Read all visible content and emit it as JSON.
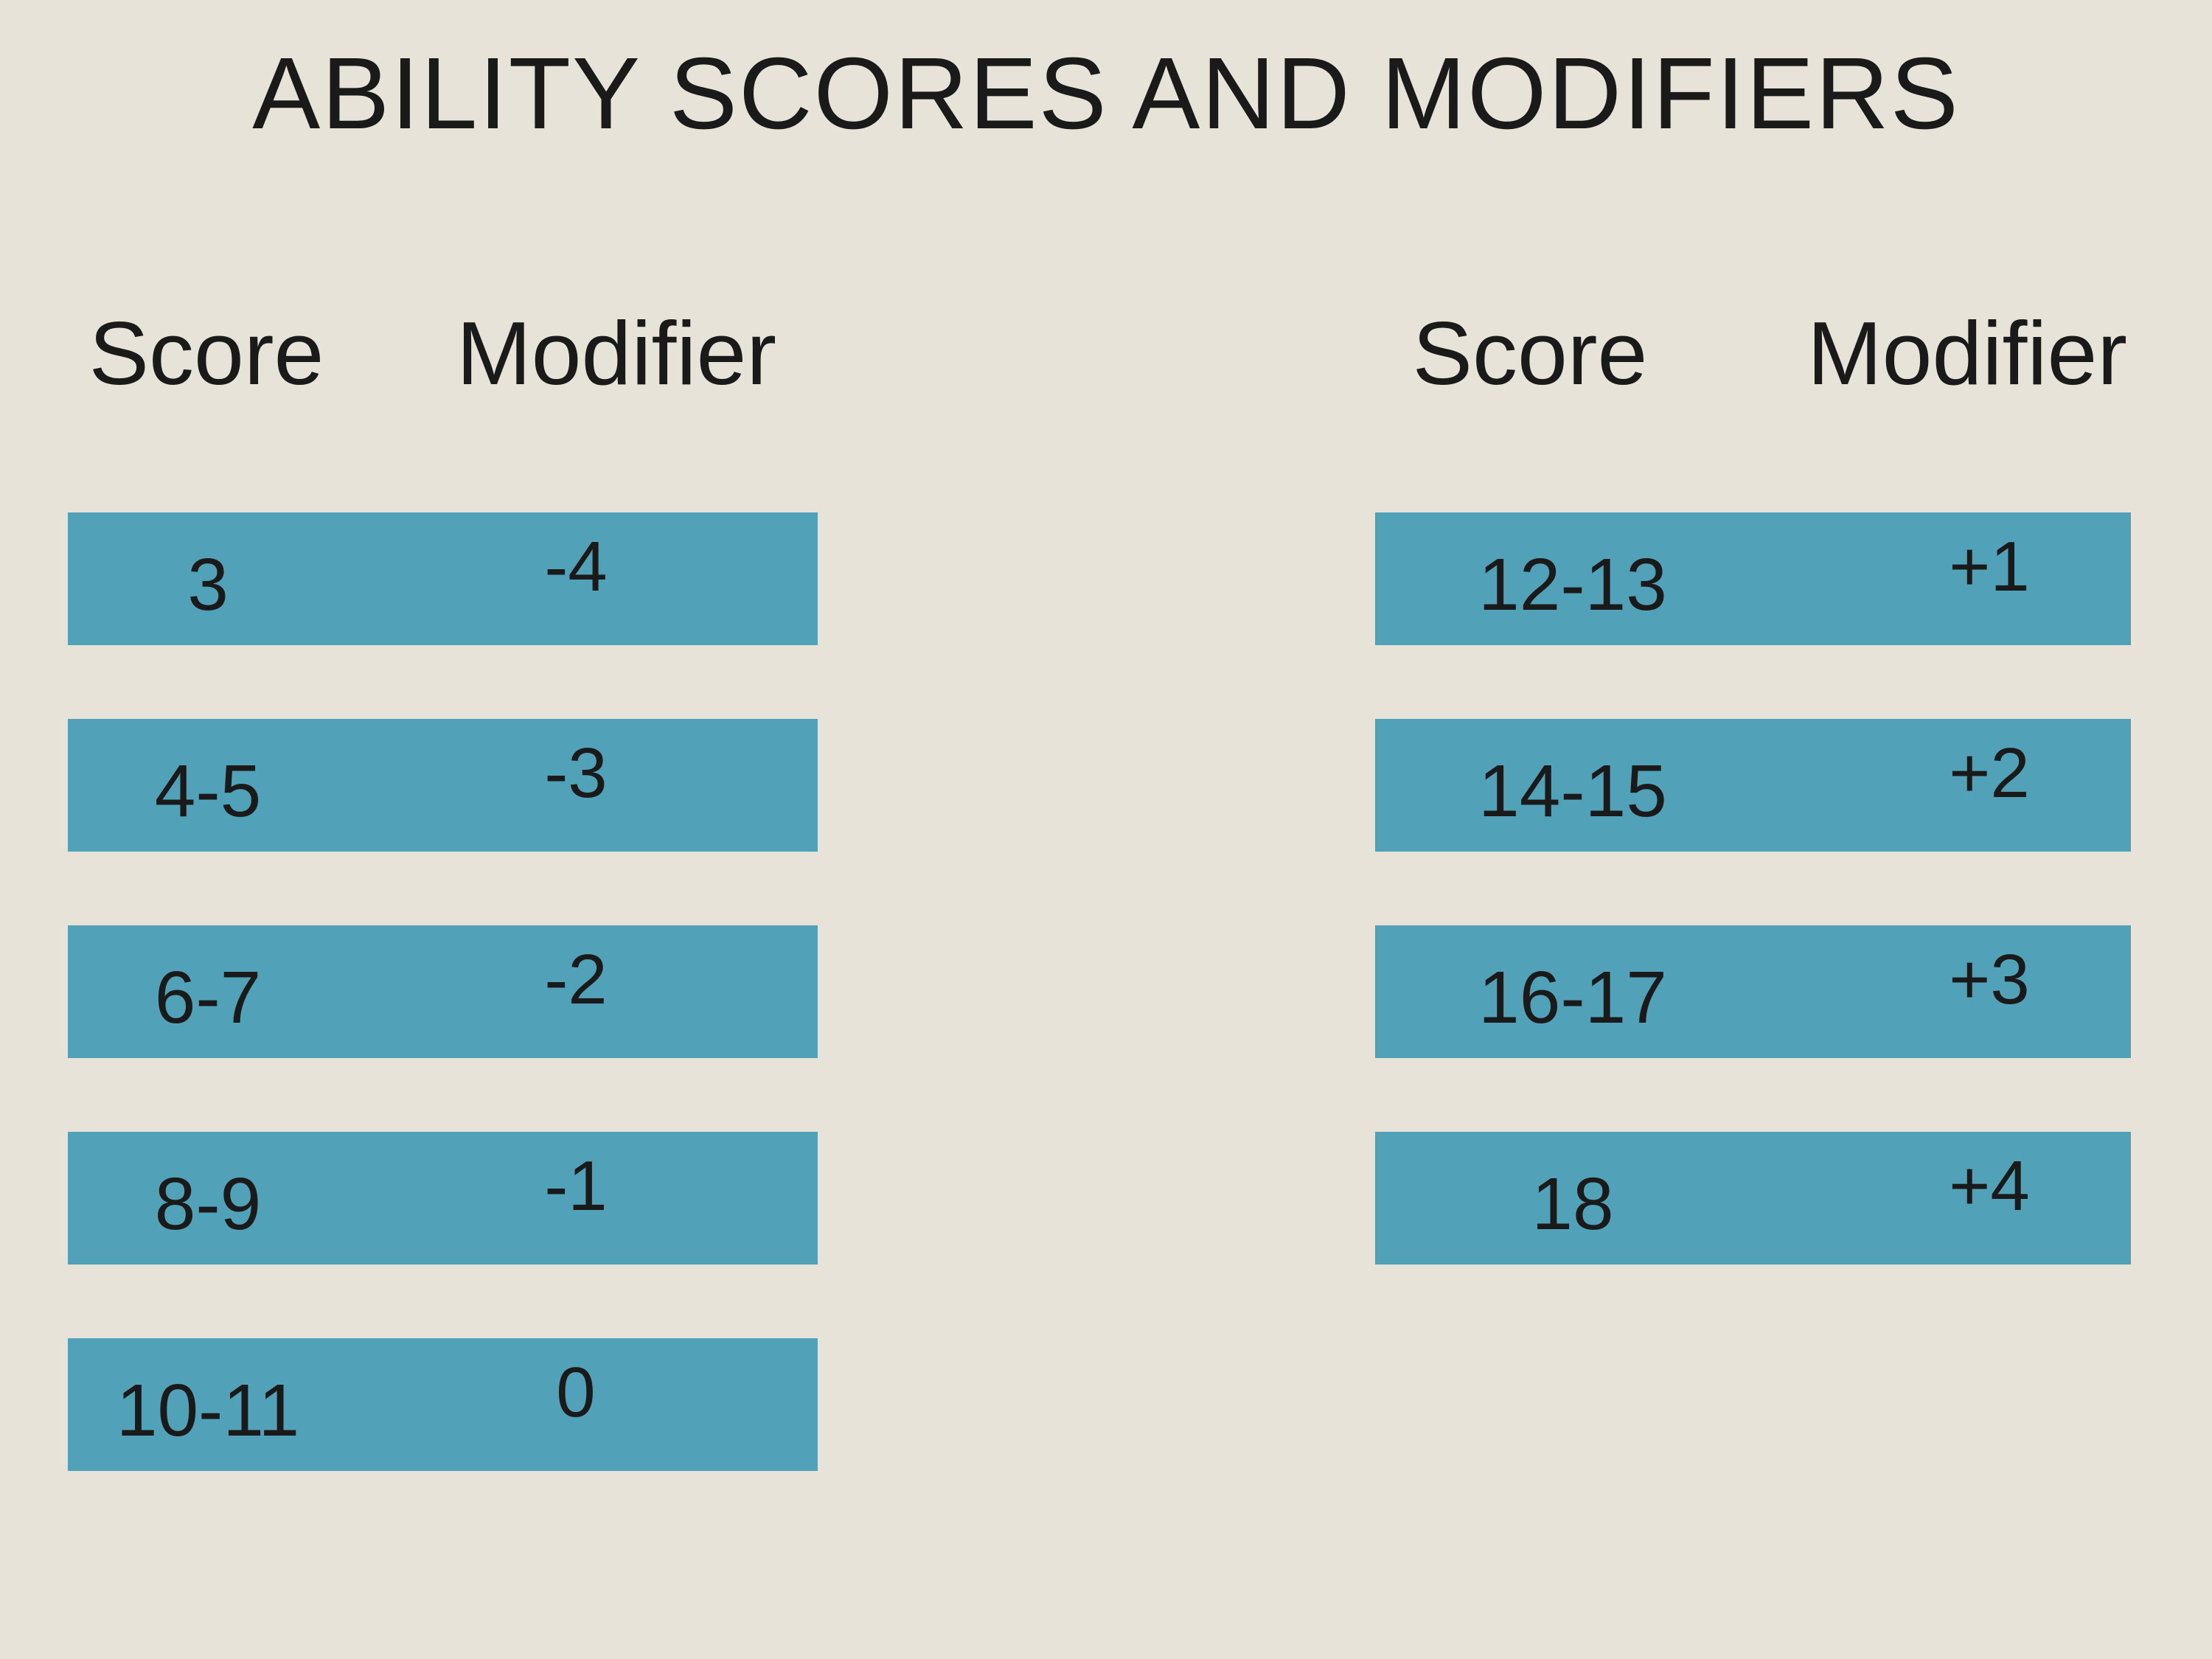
{
  "title": "ABILITY SCORES AND MODIFIERS",
  "colors": {
    "background": "#e7e3d9",
    "bar": "#51a1b8",
    "text": "#1a1a1a"
  },
  "left_table": {
    "score_header": "Score",
    "modifier_header": "Modifier",
    "rows": [
      {
        "score": "3",
        "modifier": "-4"
      },
      {
        "score": "4-5",
        "modifier": "-3"
      },
      {
        "score": "6-7",
        "modifier": "-2"
      },
      {
        "score": "8-9",
        "modifier": "-1"
      },
      {
        "score": "10-11",
        "modifier": "0"
      }
    ]
  },
  "right_table": {
    "score_header": "Score",
    "modifier_header": "Modifier",
    "rows": [
      {
        "score": "12-13",
        "modifier": "+1"
      },
      {
        "score": "14-15",
        "modifier": "+2"
      },
      {
        "score": "16-17",
        "modifier": "+3"
      },
      {
        "score": "18",
        "modifier": "+4"
      }
    ]
  },
  "chart_data": {
    "type": "table",
    "title": "ABILITY SCORES AND MODIFIERS",
    "columns": [
      "Score",
      "Modifier"
    ],
    "rows": [
      [
        "3",
        "-4"
      ],
      [
        "4-5",
        "-3"
      ],
      [
        "6-7",
        "-2"
      ],
      [
        "8-9",
        "-1"
      ],
      [
        "10-11",
        "0"
      ],
      [
        "12-13",
        "+1"
      ],
      [
        "14-15",
        "+2"
      ],
      [
        "16-17",
        "+3"
      ],
      [
        "18",
        "+4"
      ]
    ],
    "layout": "two side-by-side stacked-bar tables; rows 0-4 in left table, rows 5-8 in right table"
  }
}
